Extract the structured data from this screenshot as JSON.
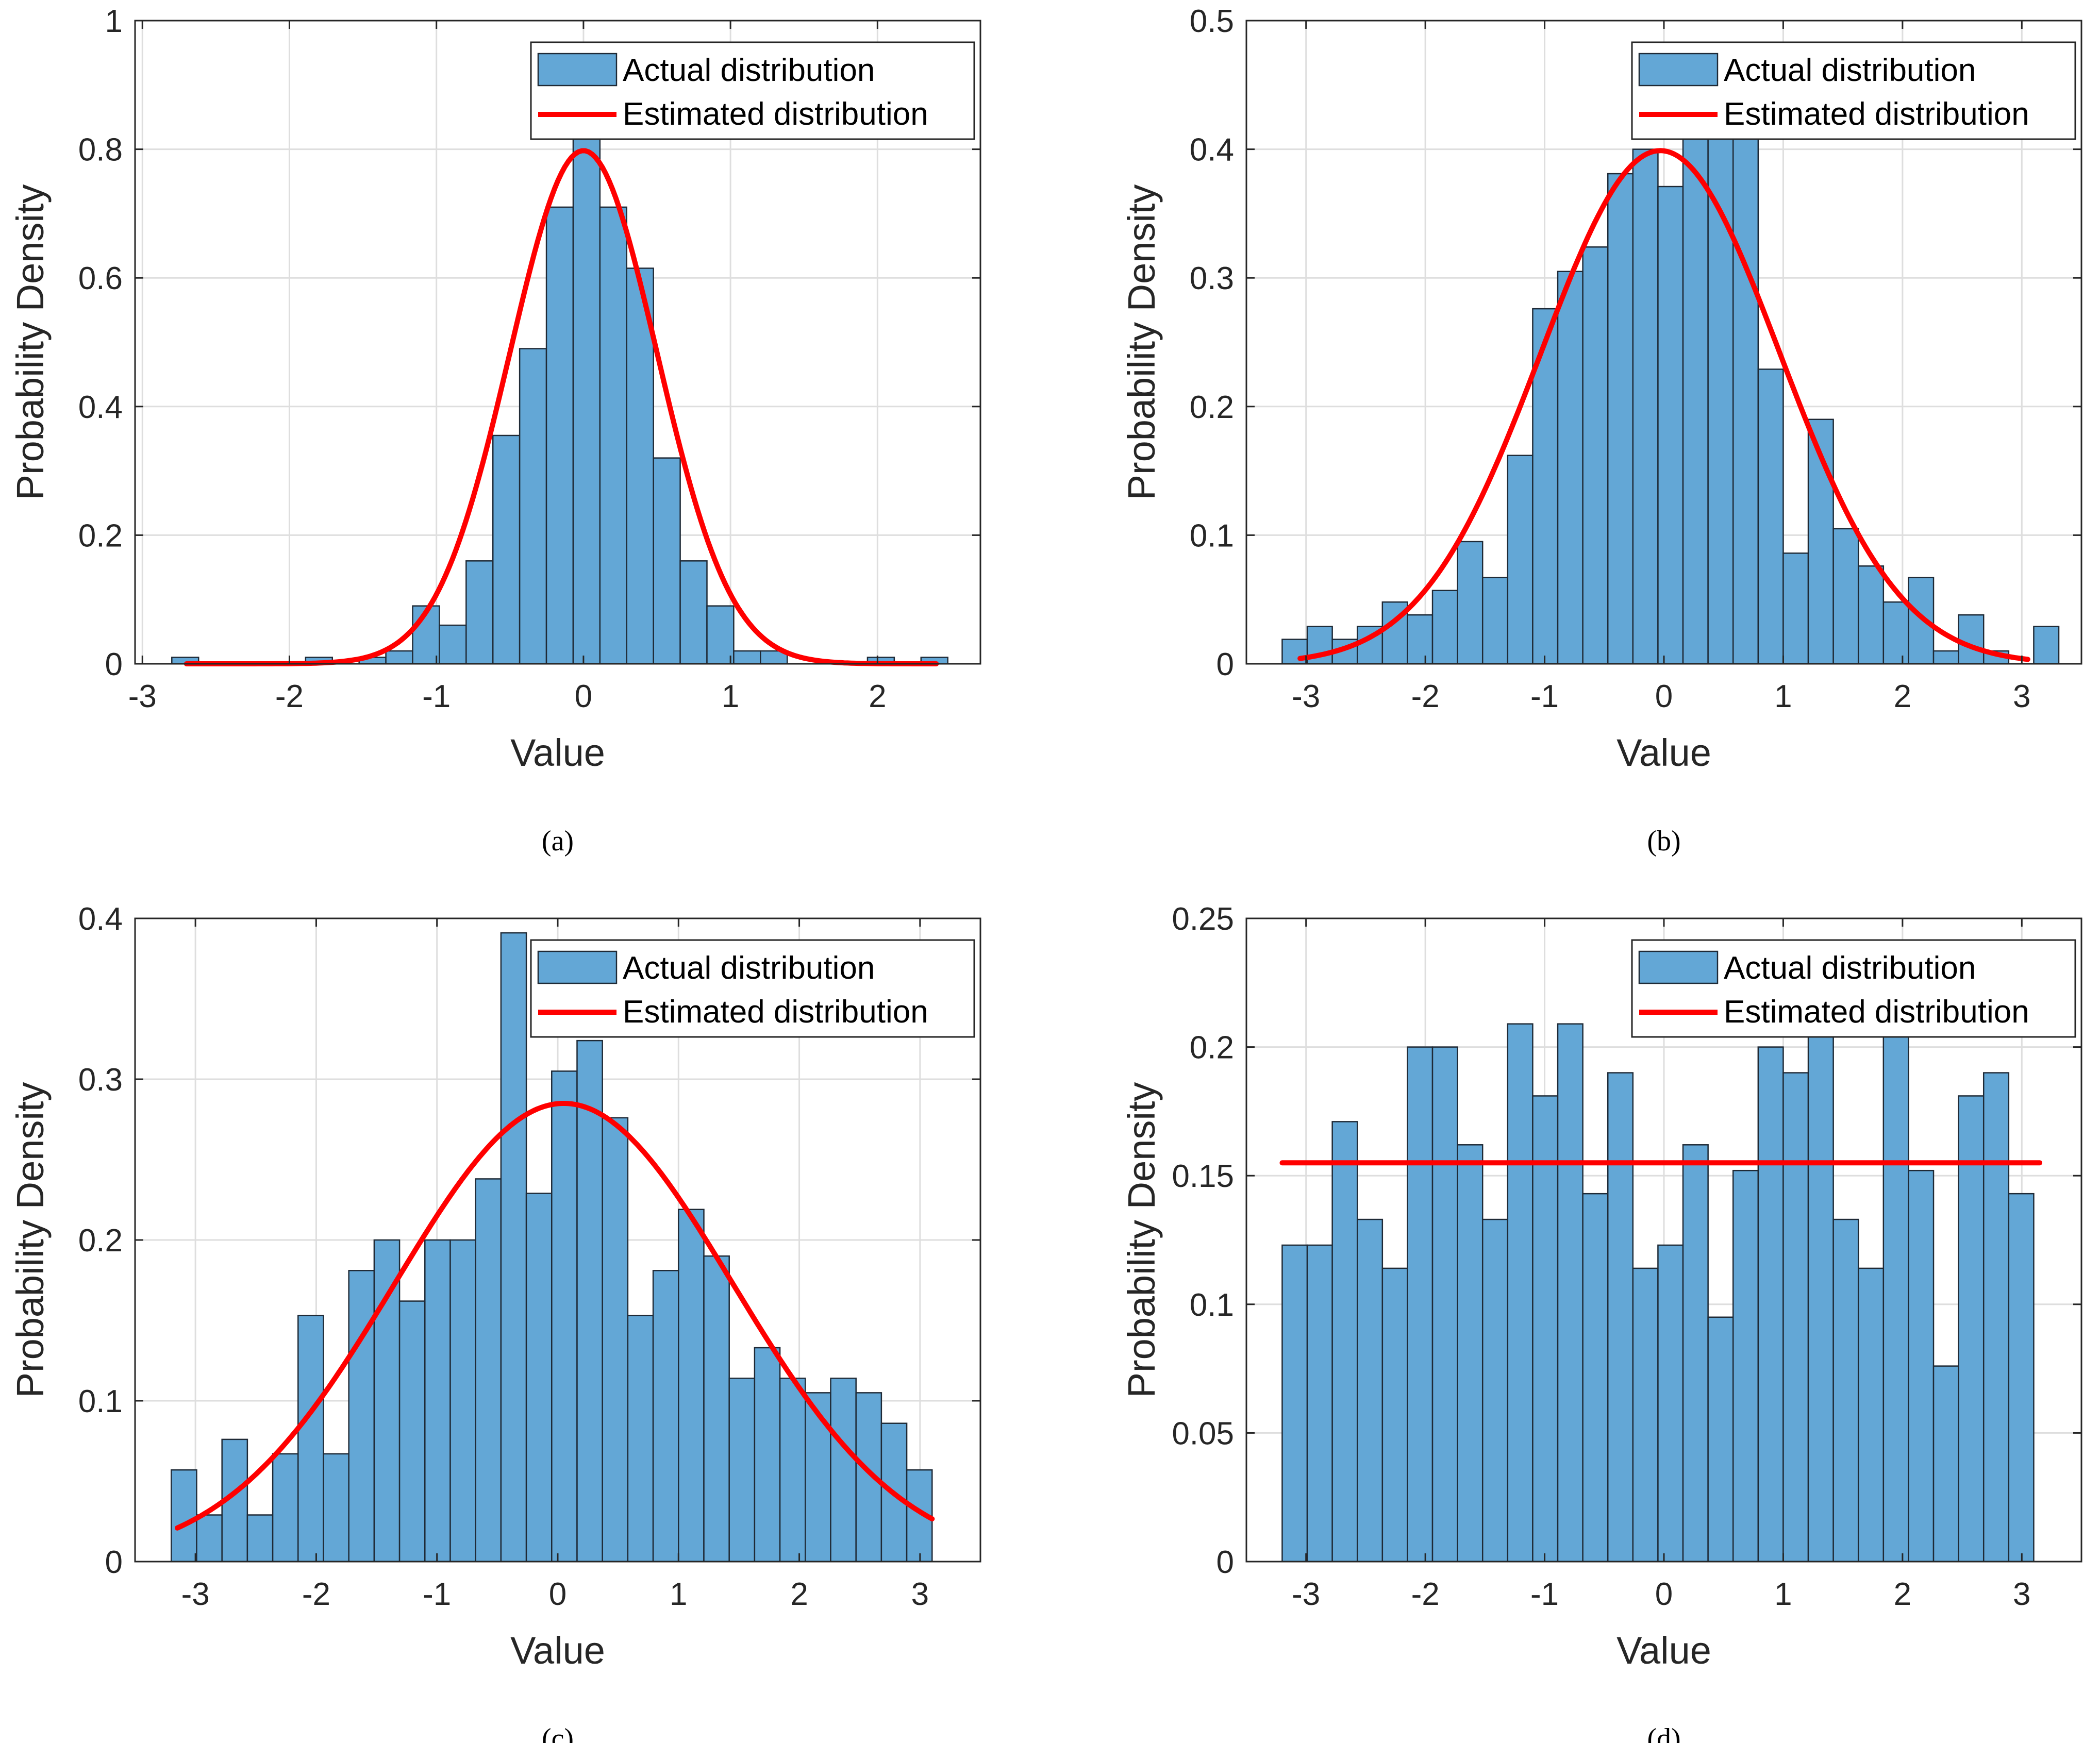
{
  "colors": {
    "bar": "#63a7d6",
    "curve": "#ff0000",
    "grid": "#dedede",
    "axis": "#262626"
  },
  "legend": {
    "actual": "Actual distribution",
    "estimated": "Estimated distribution"
  },
  "chart_data": [
    {
      "type": "bar",
      "id": "a",
      "caption": "(a)",
      "xlabel": "Value",
      "ylabel": "Probability Density",
      "xlim": [
        -3.05,
        2.7
      ],
      "ylim": [
        0,
        1
      ],
      "xticks": [
        -3,
        -2,
        -1,
        0,
        1,
        2
      ],
      "yticks": [
        0,
        0.2,
        0.4,
        0.6,
        0.8,
        1
      ],
      "xtick_labels": [
        "-3",
        "-2",
        "-1",
        "0",
        "1",
        "2"
      ],
      "ytick_labels": [
        "0",
        "0.2",
        "0.4",
        "0.6",
        "0.8",
        "1"
      ],
      "bin_start": -2.8,
      "bin_width": 0.182,
      "values": [
        0.01,
        0,
        0,
        0,
        0,
        0.01,
        0,
        0.01,
        0.02,
        0.09,
        0.06,
        0.16,
        0.355,
        0.49,
        0.71,
        0.82,
        0.71,
        0.615,
        0.32,
        0.16,
        0.09,
        0.02,
        0.02,
        0,
        0,
        0,
        0.01,
        0,
        0.01
      ],
      "estimated": {
        "kind": "normal",
        "mu": 0,
        "sigma": 0.5,
        "x_range": [
          -2.7,
          2.4
        ]
      }
    },
    {
      "type": "bar",
      "id": "b",
      "caption": "(b)",
      "xlabel": "Value",
      "ylabel": "Probability Density",
      "xlim": [
        -3.5,
        3.5
      ],
      "ylim": [
        0,
        0.5
      ],
      "xticks": [
        -3,
        -2,
        -1,
        0,
        1,
        2,
        3
      ],
      "yticks": [
        0,
        0.1,
        0.2,
        0.3,
        0.4,
        0.5
      ],
      "xtick_labels": [
        "-3",
        "-2",
        "-1",
        "0",
        "1",
        "2",
        "3"
      ],
      "ytick_labels": [
        "0",
        "0.1",
        "0.2",
        "0.3",
        "0.4",
        "0.5"
      ],
      "bin_start": -3.2,
      "bin_width": 0.21,
      "values": [
        0.019,
        0.029,
        0.019,
        0.029,
        0.048,
        0.038,
        0.057,
        0.095,
        0.067,
        0.162,
        0.276,
        0.305,
        0.324,
        0.381,
        0.4,
        0.371,
        0.419,
        0.41,
        0.41,
        0.229,
        0.086,
        0.19,
        0.105,
        0.076,
        0.048,
        0.067,
        0.01,
        0.038,
        0.01,
        0,
        0.029
      ],
      "estimated": {
        "kind": "normal",
        "mu": -0.03,
        "sigma": 1,
        "x_range": [
          -3.05,
          3.05
        ]
      }
    },
    {
      "type": "bar",
      "id": "c",
      "caption": "(c)",
      "xlabel": "Value",
      "ylabel": "Probability Density",
      "xlim": [
        -3.5,
        3.5
      ],
      "ylim": [
        0,
        0.4
      ],
      "xticks": [
        -3,
        -2,
        -1,
        0,
        1,
        2,
        3
      ],
      "yticks": [
        0,
        0.1,
        0.2,
        0.3,
        0.4
      ],
      "xtick_labels": [
        "-3",
        "-2",
        "-1",
        "0",
        "1",
        "2",
        "3"
      ],
      "ytick_labels": [
        "0",
        "0.1",
        "0.2",
        "0.3",
        "0.4"
      ],
      "bin_start": -3.2,
      "bin_width": 0.21,
      "values": [
        0.057,
        0.029,
        0.076,
        0.029,
        0.067,
        0.153,
        0.067,
        0.181,
        0.2,
        0.162,
        0.2,
        0.2,
        0.238,
        0.391,
        0.229,
        0.305,
        0.324,
        0.276,
        0.153,
        0.181,
        0.219,
        0.19,
        0.114,
        0.133,
        0.114,
        0.105,
        0.114,
        0.105,
        0.086,
        0.057
      ],
      "estimated": {
        "kind": "normal",
        "mu": 0.05,
        "sigma": 1.4,
        "x_range": [
          -3.15,
          3.1
        ]
      }
    },
    {
      "type": "bar",
      "id": "d",
      "caption": "(d)",
      "xlabel": "Value",
      "ylabel": "Probability Density",
      "xlim": [
        -3.5,
        3.5
      ],
      "ylim": [
        0,
        0.25
      ],
      "xticks": [
        -3,
        -2,
        -1,
        0,
        1,
        2,
        3
      ],
      "yticks": [
        0,
        0.05,
        0.1,
        0.15,
        0.2,
        0.25
      ],
      "xtick_labels": [
        "-3",
        "-2",
        "-1",
        "0",
        "1",
        "2",
        "3"
      ],
      "ytick_labels": [
        "0",
        "0.05",
        "0.1",
        "0.15",
        "0.2",
        "0.25"
      ],
      "bin_start": -3.2,
      "bin_width": 0.21,
      "values": [
        0.123,
        0.123,
        0.171,
        0.133,
        0.114,
        0.2,
        0.2,
        0.162,
        0.133,
        0.209,
        0.181,
        0.209,
        0.143,
        0.19,
        0.114,
        0.123,
        0.162,
        0.095,
        0.152,
        0.2,
        0.19,
        0.219,
        0.133,
        0.114,
        0.219,
        0.152,
        0.076,
        0.181,
        0.19,
        0.143
      ],
      "estimated": {
        "kind": "constant",
        "value": 0.155,
        "x_range": [
          -3.2,
          3.15
        ]
      }
    }
  ]
}
